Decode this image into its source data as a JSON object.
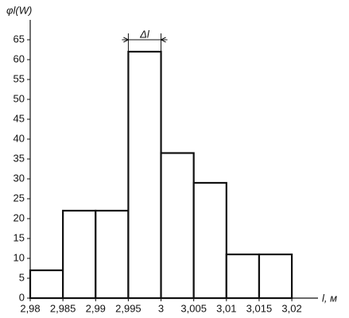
{
  "chart_data": {
    "type": "histogram",
    "y_label": "φl(W)",
    "x_label": "l, м",
    "annotation": "Δl",
    "bins": [
      2.98,
      2.985,
      2.99,
      2.995,
      3,
      3.005,
      3.01,
      3.015,
      3.02
    ],
    "counts": [
      7,
      22,
      22,
      62,
      36.5,
      29,
      11,
      11
    ],
    "color": "#ffffff",
    "xlim": [
      2.98,
      3.024
    ],
    "ylim": [
      0,
      70
    ],
    "xticks": [
      {
        "value": 2.98,
        "label": "2,98"
      },
      {
        "value": 2.985,
        "label": "2,985"
      },
      {
        "value": 2.99,
        "label": "2,99"
      },
      {
        "value": 2.995,
        "label": "2,995"
      },
      3,
      {
        "value": 3.005,
        "label": "3,005"
      },
      {
        "value": 3.01,
        "label": "3,01"
      },
      {
        "value": 3.015,
        "label": "3,015"
      },
      {
        "value": 3.02,
        "label": "3,02"
      }
    ],
    "yticks": [
      0,
      5,
      10,
      15,
      20,
      25,
      30,
      35,
      40,
      45,
      50,
      55,
      60,
      65
    ],
    "grid": false
  }
}
